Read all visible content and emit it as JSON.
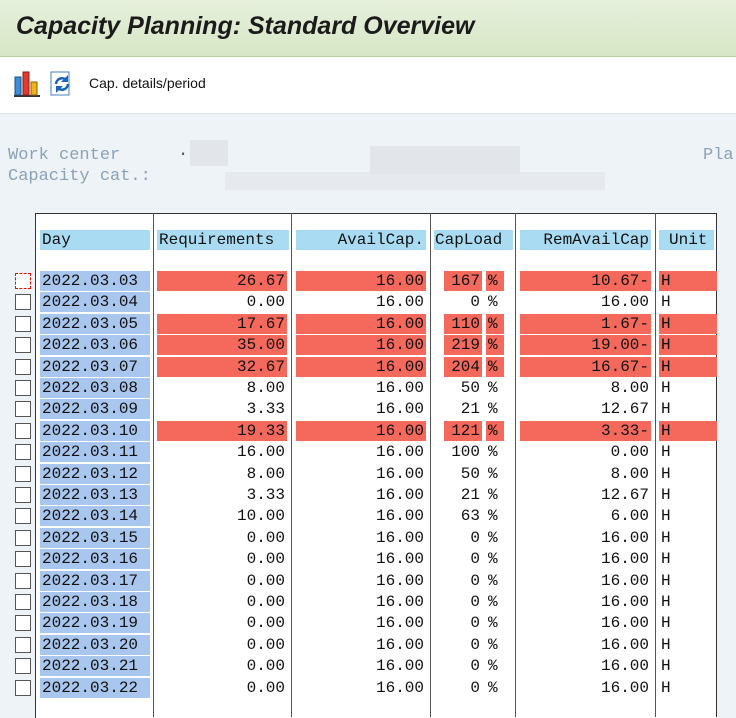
{
  "title": "Capacity Planning: Standard Overview",
  "toolbar": {
    "chart_icon": "bar-chart-icon",
    "refresh_icon": "refresh-icon",
    "cap_details_label": "Cap. details/period"
  },
  "header": {
    "work_center_label": "Work center",
    "capacity_cat_label": "Capacity cat.:",
    "plant_label": "Pla",
    "dot": "."
  },
  "columns": {
    "day": "Day",
    "requirements": "Requirements",
    "availcap": "AvailCap.",
    "capload": "CapLoad",
    "remavailcap": "RemAvailCap",
    "unit": "Unit"
  },
  "colors": {
    "overload": "#f4695b",
    "header": "#a9dcf2",
    "day": "#a9c7ee"
  },
  "rows": [
    {
      "day": "2022.03.03",
      "req": "26.67",
      "avail": "16.00",
      "load": "167",
      "pct": "%",
      "rem": "10.67-",
      "unit": "H",
      "over": true
    },
    {
      "day": "2022.03.04",
      "req": "0.00",
      "avail": "16.00",
      "load": "0",
      "pct": "%",
      "rem": "16.00",
      "unit": "H",
      "over": false
    },
    {
      "day": "2022.03.05",
      "req": "17.67",
      "avail": "16.00",
      "load": "110",
      "pct": "%",
      "rem": "1.67-",
      "unit": "H",
      "over": true
    },
    {
      "day": "2022.03.06",
      "req": "35.00",
      "avail": "16.00",
      "load": "219",
      "pct": "%",
      "rem": "19.00-",
      "unit": "H",
      "over": true
    },
    {
      "day": "2022.03.07",
      "req": "32.67",
      "avail": "16.00",
      "load": "204",
      "pct": "%",
      "rem": "16.67-",
      "unit": "H",
      "over": true
    },
    {
      "day": "2022.03.08",
      "req": "8.00",
      "avail": "16.00",
      "load": "50",
      "pct": "%",
      "rem": "8.00",
      "unit": "H",
      "over": false
    },
    {
      "day": "2022.03.09",
      "req": "3.33",
      "avail": "16.00",
      "load": "21",
      "pct": "%",
      "rem": "12.67",
      "unit": "H",
      "over": false
    },
    {
      "day": "2022.03.10",
      "req": "19.33",
      "avail": "16.00",
      "load": "121",
      "pct": "%",
      "rem": "3.33-",
      "unit": "H",
      "over": true
    },
    {
      "day": "2022.03.11",
      "req": "16.00",
      "avail": "16.00",
      "load": "100",
      "pct": "%",
      "rem": "0.00",
      "unit": "H",
      "over": false
    },
    {
      "day": "2022.03.12",
      "req": "8.00",
      "avail": "16.00",
      "load": "50",
      "pct": "%",
      "rem": "8.00",
      "unit": "H",
      "over": false
    },
    {
      "day": "2022.03.13",
      "req": "3.33",
      "avail": "16.00",
      "load": "21",
      "pct": "%",
      "rem": "12.67",
      "unit": "H",
      "over": false
    },
    {
      "day": "2022.03.14",
      "req": "10.00",
      "avail": "16.00",
      "load": "63",
      "pct": "%",
      "rem": "6.00",
      "unit": "H",
      "over": false
    },
    {
      "day": "2022.03.15",
      "req": "0.00",
      "avail": "16.00",
      "load": "0",
      "pct": "%",
      "rem": "16.00",
      "unit": "H",
      "over": false
    },
    {
      "day": "2022.03.16",
      "req": "0.00",
      "avail": "16.00",
      "load": "0",
      "pct": "%",
      "rem": "16.00",
      "unit": "H",
      "over": false
    },
    {
      "day": "2022.03.17",
      "req": "0.00",
      "avail": "16.00",
      "load": "0",
      "pct": "%",
      "rem": "16.00",
      "unit": "H",
      "over": false
    },
    {
      "day": "2022.03.18",
      "req": "0.00",
      "avail": "16.00",
      "load": "0",
      "pct": "%",
      "rem": "16.00",
      "unit": "H",
      "over": false
    },
    {
      "day": "2022.03.19",
      "req": "0.00",
      "avail": "16.00",
      "load": "0",
      "pct": "%",
      "rem": "16.00",
      "unit": "H",
      "over": false
    },
    {
      "day": "2022.03.20",
      "req": "0.00",
      "avail": "16.00",
      "load": "0",
      "pct": "%",
      "rem": "16.00",
      "unit": "H",
      "over": false
    },
    {
      "day": "2022.03.21",
      "req": "0.00",
      "avail": "16.00",
      "load": "0",
      "pct": "%",
      "rem": "16.00",
      "unit": "H",
      "over": false
    },
    {
      "day": "2022.03.22",
      "req": "0.00",
      "avail": "16.00",
      "load": "0",
      "pct": "%",
      "rem": "16.00",
      "unit": "H",
      "over": false
    }
  ]
}
